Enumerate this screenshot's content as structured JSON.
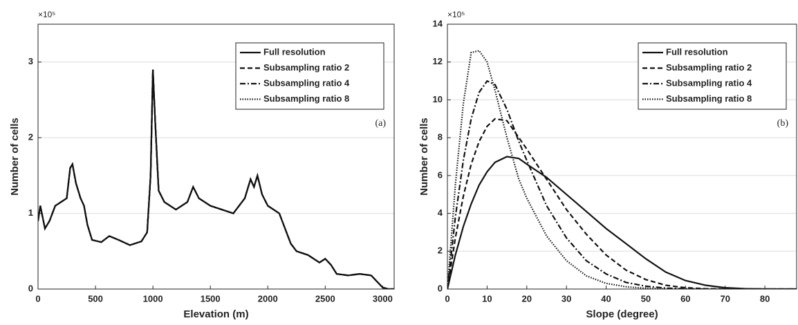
{
  "chart_data": [
    {
      "type": "line",
      "xlabel": "Elevation (m)",
      "ylabel": "Number of cells",
      "y_multiplier": "×10⁵",
      "annotation": "(a)",
      "xlim": [
        0,
        3100
      ],
      "xticks": [
        0,
        500,
        1000,
        1500,
        2000,
        2500,
        3000
      ],
      "ylim": [
        0,
        3.5
      ],
      "yticks": [
        0,
        1,
        2,
        3
      ],
      "grid": true,
      "legend": "upper right",
      "x": [
        0,
        20,
        60,
        100,
        150,
        200,
        250,
        280,
        300,
        330,
        370,
        400,
        430,
        470,
        550,
        620,
        700,
        800,
        900,
        950,
        980,
        1000,
        1020,
        1050,
        1100,
        1200,
        1300,
        1350,
        1400,
        1500,
        1600,
        1700,
        1800,
        1850,
        1880,
        1910,
        1950,
        2000,
        2100,
        2150,
        2200,
        2250,
        2350,
        2450,
        2500,
        2550,
        2600,
        2700,
        2800,
        2900,
        2950,
        3000,
        3050,
        3100
      ],
      "series": [
        {
          "name": "Full resolution",
          "color": "#111",
          "style": "solid",
          "values": [
            0.9,
            1.1,
            0.8,
            0.9,
            1.1,
            1.15,
            1.2,
            1.6,
            1.65,
            1.4,
            1.2,
            1.1,
            0.85,
            0.65,
            0.62,
            0.7,
            0.65,
            0.58,
            0.63,
            0.75,
            1.5,
            2.9,
            2.2,
            1.3,
            1.15,
            1.05,
            1.15,
            1.35,
            1.2,
            1.1,
            1.05,
            1.0,
            1.2,
            1.45,
            1.35,
            1.5,
            1.25,
            1.1,
            1.0,
            0.8,
            0.6,
            0.5,
            0.45,
            0.35,
            0.4,
            0.32,
            0.2,
            0.18,
            0.2,
            0.18,
            0.1,
            0.02,
            0,
            0
          ]
        },
        {
          "name": "Subsampling ratio 2",
          "color": "#111",
          "style": "dash",
          "values": [
            0.9,
            1.1,
            0.8,
            0.9,
            1.1,
            1.15,
            1.2,
            1.6,
            1.65,
            1.4,
            1.2,
            1.1,
            0.85,
            0.65,
            0.62,
            0.7,
            0.65,
            0.58,
            0.63,
            0.75,
            1.5,
            2.9,
            2.2,
            1.3,
            1.15,
            1.05,
            1.15,
            1.35,
            1.2,
            1.1,
            1.05,
            1.0,
            1.2,
            1.45,
            1.35,
            1.5,
            1.25,
            1.1,
            1.0,
            0.8,
            0.6,
            0.5,
            0.45,
            0.35,
            0.4,
            0.32,
            0.2,
            0.18,
            0.2,
            0.18,
            0.1,
            0.02,
            0,
            0
          ]
        },
        {
          "name": "Subsampling ratio 4",
          "color": "#111",
          "style": "dashdot",
          "values": [
            0.9,
            1.1,
            0.8,
            0.9,
            1.1,
            1.15,
            1.2,
            1.6,
            1.65,
            1.4,
            1.2,
            1.1,
            0.85,
            0.65,
            0.62,
            0.7,
            0.65,
            0.58,
            0.63,
            0.75,
            1.5,
            2.9,
            2.2,
            1.3,
            1.15,
            1.05,
            1.15,
            1.35,
            1.2,
            1.1,
            1.05,
            1.0,
            1.2,
            1.45,
            1.35,
            1.5,
            1.25,
            1.1,
            1.0,
            0.8,
            0.6,
            0.5,
            0.45,
            0.35,
            0.4,
            0.32,
            0.2,
            0.18,
            0.2,
            0.18,
            0.1,
            0.02,
            0,
            0
          ]
        },
        {
          "name": "Subsampling ratio 8",
          "color": "#111",
          "style": "dot",
          "values": [
            0.9,
            1.1,
            0.8,
            0.9,
            1.1,
            1.15,
            1.2,
            1.6,
            1.65,
            1.4,
            1.2,
            1.1,
            0.85,
            0.65,
            0.62,
            0.7,
            0.65,
            0.58,
            0.63,
            0.75,
            1.5,
            2.9,
            2.2,
            1.3,
            1.15,
            1.05,
            1.15,
            1.35,
            1.2,
            1.1,
            1.05,
            1.0,
            1.2,
            1.45,
            1.35,
            1.5,
            1.25,
            1.1,
            1.0,
            0.8,
            0.6,
            0.5,
            0.45,
            0.35,
            0.4,
            0.32,
            0.2,
            0.18,
            0.2,
            0.18,
            0.1,
            0.02,
            0,
            0
          ]
        }
      ]
    },
    {
      "type": "line",
      "xlabel": "Slope (degree)",
      "ylabel": "Number of cells",
      "y_multiplier": "×10⁵",
      "annotation": "(b)",
      "xlim": [
        0,
        88
      ],
      "xticks": [
        0,
        10,
        20,
        30,
        40,
        50,
        60,
        70,
        80
      ],
      "ylim": [
        0,
        14
      ],
      "yticks": [
        0,
        2,
        4,
        6,
        8,
        10,
        12,
        14
      ],
      "grid": true,
      "legend": "upper right",
      "x": [
        0,
        2,
        4,
        6,
        8,
        10,
        12,
        15,
        18,
        20,
        25,
        30,
        35,
        40,
        45,
        50,
        55,
        60,
        65,
        70,
        75,
        80,
        88
      ],
      "series": [
        {
          "name": "Full resolution",
          "color": "#111",
          "style": "solid",
          "values": [
            0,
            1.8,
            3.3,
            4.5,
            5.5,
            6.2,
            6.7,
            7.0,
            6.9,
            6.6,
            5.9,
            5.0,
            4.1,
            3.2,
            2.4,
            1.6,
            0.9,
            0.45,
            0.2,
            0.07,
            0.02,
            0,
            0
          ]
        },
        {
          "name": "Subsampling ratio 2",
          "color": "#111",
          "style": "dash",
          "values": [
            0,
            2.7,
            4.9,
            6.6,
            7.8,
            8.6,
            9.0,
            8.9,
            8.0,
            7.4,
            5.8,
            4.2,
            2.9,
            1.8,
            1.0,
            0.5,
            0.2,
            0.07,
            0.02,
            0,
            0,
            0,
            0
          ]
        },
        {
          "name": "Subsampling ratio 4",
          "color": "#111",
          "style": "dashdot",
          "values": [
            0,
            3.8,
            6.8,
            9.0,
            10.4,
            11.0,
            10.8,
            9.5,
            7.8,
            6.8,
            4.4,
            2.7,
            1.5,
            0.8,
            0.35,
            0.15,
            0.05,
            0.02,
            0,
            0,
            0,
            0,
            0
          ]
        },
        {
          "name": "Subsampling ratio 8",
          "color": "#111",
          "style": "dot",
          "values": [
            0,
            5.5,
            9.8,
            12.5,
            12.6,
            12.0,
            10.5,
            8.0,
            5.8,
            4.8,
            2.8,
            1.5,
            0.7,
            0.3,
            0.12,
            0.04,
            0.01,
            0,
            0,
            0,
            0,
            0,
            0
          ]
        }
      ]
    }
  ]
}
